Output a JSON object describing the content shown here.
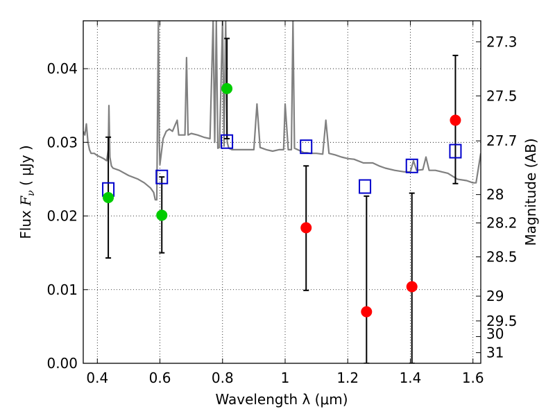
{
  "chart_data": {
    "type": "scatter",
    "title": "",
    "xlabel": "Wavelength  λ (μm)",
    "ylabel_prefix": "Flux  ",
    "ylabel_symbol": "F",
    "ylabel_sub": "ν",
    "ylabel_suffix": "  ( μJy )",
    "y2label": "Magnitude (AB)",
    "xlim": [
      0.355,
      1.625
    ],
    "ylim": [
      0.0,
      0.0465
    ],
    "grid": true,
    "x_ticks": [
      0.4,
      0.6,
      0.8,
      1.0,
      1.2,
      1.4,
      1.6
    ],
    "x_tick_labels": [
      "0.4",
      "0.6",
      "0.8",
      "1",
      "1.2",
      "1.4",
      "1.6"
    ],
    "y_ticks": [
      0.0,
      0.01,
      0.02,
      0.03,
      0.04
    ],
    "y_tick_labels": [
      "0.00",
      "0.01",
      "0.02",
      "0.03",
      "0.04"
    ],
    "y2_ticks": [
      27.3,
      27.5,
      27.7,
      28.0,
      28.2,
      28.5,
      29.0,
      29.5,
      30.0,
      31.0
    ],
    "y2_tick_labels": [
      "27.3",
      "27.5",
      "27.7",
      "28",
      "28.2",
      "28.5",
      "29",
      "29.5",
      "30",
      "31"
    ],
    "series": [
      {
        "kind": "line",
        "color": "#808080",
        "x": [
          0.355,
          0.36,
          0.365,
          0.37,
          0.375,
          0.38,
          0.39,
          0.4,
          0.41,
          0.42,
          0.43,
          0.435,
          0.437,
          0.44,
          0.445,
          0.45,
          0.47,
          0.5,
          0.53,
          0.55,
          0.57,
          0.58,
          0.585,
          0.59,
          0.592,
          0.595,
          0.598,
          0.6,
          0.61,
          0.62,
          0.63,
          0.64,
          0.65,
          0.655,
          0.66,
          0.67,
          0.68,
          0.685,
          0.69,
          0.7,
          0.72,
          0.74,
          0.76,
          0.77,
          0.775,
          0.78,
          0.785,
          0.79,
          0.8,
          0.805,
          0.81,
          0.815,
          0.82,
          0.83,
          0.85,
          0.87,
          0.89,
          0.9,
          0.91,
          0.92,
          0.94,
          0.96,
          0.98,
          0.995,
          1.0,
          1.01,
          1.02,
          1.025,
          1.03,
          1.04,
          1.05,
          1.06,
          1.07,
          1.08,
          1.1,
          1.12,
          1.13,
          1.14,
          1.16,
          1.18,
          1.2,
          1.22,
          1.25,
          1.28,
          1.3,
          1.32,
          1.35,
          1.38,
          1.4,
          1.41,
          1.42,
          1.44,
          1.45,
          1.46,
          1.48,
          1.5,
          1.52,
          1.55,
          1.58,
          1.6,
          1.61,
          1.625
        ],
        "y": [
          0.0315,
          0.031,
          0.0325,
          0.03,
          0.029,
          0.0285,
          0.0285,
          0.0282,
          0.028,
          0.0278,
          0.0275,
          0.029,
          0.035,
          0.028,
          0.0268,
          0.0265,
          0.0262,
          0.0255,
          0.025,
          0.0245,
          0.0238,
          0.0232,
          0.0222,
          0.0222,
          0.032,
          0.0465,
          0.03,
          0.027,
          0.0305,
          0.0315,
          0.0318,
          0.0315,
          0.0325,
          0.033,
          0.031,
          0.031,
          0.031,
          0.0415,
          0.031,
          0.0312,
          0.031,
          0.0307,
          0.0305,
          0.0465,
          0.03,
          0.0465,
          0.0292,
          0.0293,
          0.0465,
          0.0295,
          0.0465,
          0.03,
          0.0292,
          0.029,
          0.029,
          0.029,
          0.029,
          0.029,
          0.0352,
          0.0293,
          0.029,
          0.0288,
          0.029,
          0.029,
          0.0352,
          0.029,
          0.029,
          0.0465,
          0.0292,
          0.029,
          0.0288,
          0.0286,
          0.0286,
          0.0285,
          0.0285,
          0.0284,
          0.033,
          0.0285,
          0.0283,
          0.028,
          0.0278,
          0.0277,
          0.0272,
          0.0272,
          0.0268,
          0.0265,
          0.0262,
          0.026,
          0.026,
          0.0275,
          0.0262,
          0.0263,
          0.028,
          0.0262,
          0.0262,
          0.026,
          0.0258,
          0.025,
          0.0248,
          0.0245,
          0.0245,
          0.0285
        ]
      },
      {
        "kind": "markers",
        "marker": "open-square",
        "color": "#0000cc",
        "x": [
          0.435,
          0.606,
          0.814,
          1.067,
          1.255,
          1.405,
          1.544
        ],
        "y": [
          0.0236,
          0.0253,
          0.0301,
          0.0294,
          0.024,
          0.0268,
          0.0288
        ]
      },
      {
        "kind": "markers",
        "marker": "filled-circle",
        "color": "#00cc00",
        "x": [
          0.435,
          0.606,
          0.814
        ],
        "y": [
          0.0225,
          0.0201,
          0.0373
        ],
        "yerr_low": [
          0.0143,
          0.015,
          0.0305
        ],
        "yerr_high": [
          0.0307,
          0.0253,
          0.0441
        ]
      },
      {
        "kind": "markers",
        "marker": "filled-circle",
        "color": "#ff0000",
        "x": [
          1.067,
          1.26,
          1.405,
          1.544
        ],
        "y": [
          0.0184,
          0.007,
          0.0104,
          0.033
        ],
        "yerr_low": [
          0.0099,
          0.0,
          0.0,
          0.0244
        ],
        "yerr_high": [
          0.0268,
          0.0227,
          0.0231,
          0.0418
        ]
      }
    ]
  }
}
